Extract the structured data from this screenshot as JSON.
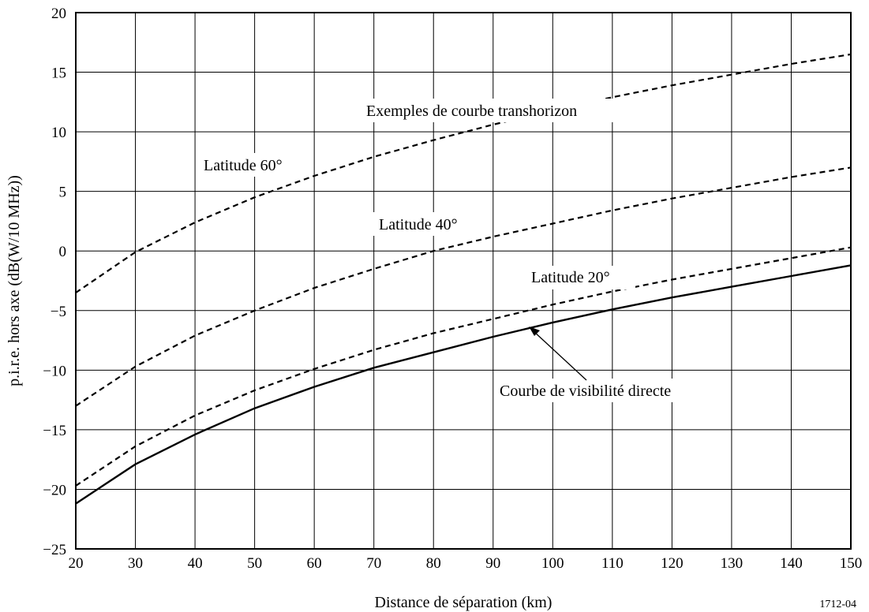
{
  "chart_data": {
    "type": "line",
    "xlabel": "Distance de séparation (km)",
    "ylabel": "p.i.r.e. hors axe (dB(W/10 MHz))",
    "figure_id": "1712-04",
    "xlim": [
      20,
      150
    ],
    "ylim": [
      -25,
      20
    ],
    "xticks": [
      20,
      30,
      40,
      50,
      60,
      70,
      80,
      90,
      100,
      110,
      120,
      130,
      140,
      150
    ],
    "yticks": [
      20,
      15,
      10,
      5,
      0,
      -5,
      -10,
      -15,
      -20,
      -25
    ],
    "ytick_labels": [
      "20",
      "15",
      "10",
      "5",
      "0",
      "−5",
      "−10",
      "−15",
      "−20",
      "−25"
    ],
    "grid": true,
    "x": [
      20,
      30,
      40,
      50,
      60,
      70,
      80,
      90,
      100,
      110,
      120,
      130,
      140,
      150
    ],
    "series": [
      {
        "style": "dashed",
        "label": "Latitude 60°",
        "values": [
          -3.5,
          -0.1,
          2.4,
          4.5,
          6.3,
          7.9,
          9.3,
          10.6,
          11.8,
          12.9,
          13.9,
          14.8,
          15.7,
          16.5
        ]
      },
      {
        "style": "dashed",
        "label": "Latitude 40°",
        "values": [
          -13.0,
          -9.7,
          -7.1,
          -5.0,
          -3.1,
          -1.5,
          0.0,
          1.2,
          2.3,
          3.4,
          4.4,
          5.3,
          6.2,
          7.0
        ]
      },
      {
        "style": "dashed",
        "label": "Latitude 20°",
        "values": [
          -19.7,
          -16.4,
          -13.8,
          -11.7,
          -9.9,
          -8.3,
          -6.9,
          -5.7,
          -4.5,
          -3.4,
          -2.4,
          -1.5,
          -0.6,
          0.3
        ]
      },
      {
        "style": "solid",
        "label": "Courbe de visibilité directe",
        "values": [
          -21.2,
          -17.9,
          -15.4,
          -13.2,
          -11.4,
          -9.8,
          -8.5,
          -7.2,
          -6.0,
          -4.9,
          -3.9,
          -3.0,
          -2.1,
          -1.2
        ]
      }
    ],
    "annotations": {
      "transhorizon": "Exemples de courbe transhorizon",
      "lat60": "Latitude 60°",
      "lat40": "Latitude 40°",
      "lat20": "Latitude 20°",
      "los": "Courbe de visibilité directe"
    }
  }
}
